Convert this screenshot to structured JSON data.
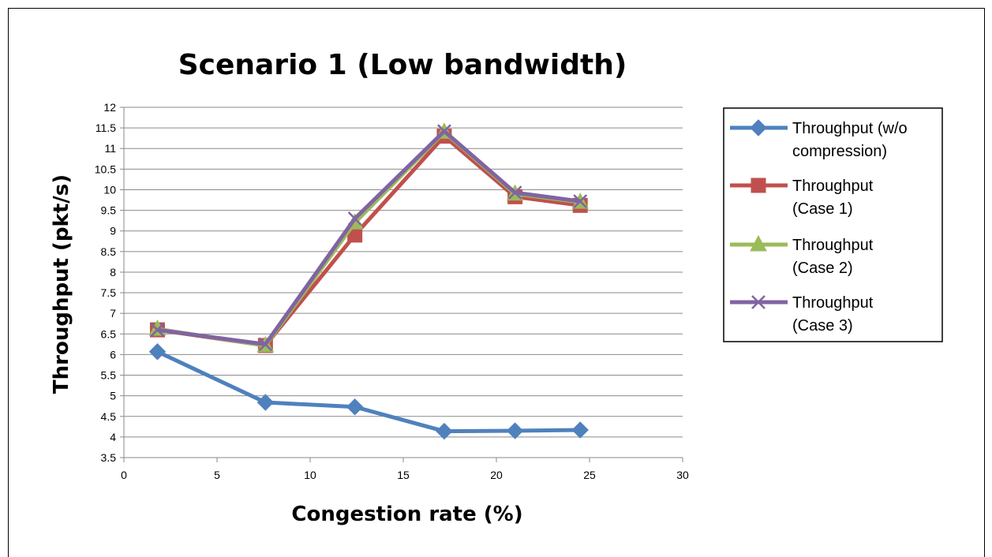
{
  "chart_data": {
    "type": "line",
    "title": "Scenario 1 (Low bandwidth)",
    "xlabel": "Congestion rate (%)",
    "ylabel": "Throughput (pkt/s)",
    "xlim": [
      0,
      30
    ],
    "ylim": [
      3.5,
      12
    ],
    "xticks": [
      0,
      5,
      10,
      15,
      20,
      25,
      30
    ],
    "yticks": [
      3.5,
      4,
      4.5,
      5,
      5.5,
      6,
      6.5,
      7,
      7.5,
      8,
      8.5,
      9,
      9.5,
      10,
      10.5,
      11,
      11.5,
      12
    ],
    "grid": "horizontal",
    "legend_position": "right",
    "series": [
      {
        "name_lines": [
          "Throughput (w/o",
          "compression)"
        ],
        "color": "#4F81BD",
        "marker": "diamond",
        "x": [
          1.8,
          7.6,
          12.4,
          17.2,
          21.0,
          24.5
        ],
        "y": [
          6.07,
          4.84,
          4.73,
          4.14,
          4.15,
          4.17
        ]
      },
      {
        "name_lines": [
          "Throughput",
          "(Case 1)"
        ],
        "color": "#C0504D",
        "marker": "square",
        "x": [
          1.8,
          7.6,
          12.4,
          17.2,
          21.0,
          24.5
        ],
        "y": [
          6.6,
          6.22,
          8.9,
          11.3,
          9.83,
          9.62
        ]
      },
      {
        "name_lines": [
          "Throughput",
          "(Case 2)"
        ],
        "color": "#9BBB59",
        "marker": "triangle",
        "x": [
          1.8,
          7.6,
          12.4,
          17.2,
          21.0,
          24.5
        ],
        "y": [
          6.62,
          6.22,
          9.2,
          11.4,
          9.9,
          9.7
        ]
      },
      {
        "name_lines": [
          "Throughput",
          "(Case 3)"
        ],
        "color": "#8064A2",
        "marker": "x",
        "x": [
          1.8,
          7.6,
          12.4,
          17.2,
          21.0,
          24.5
        ],
        "y": [
          6.6,
          6.25,
          9.3,
          11.42,
          9.93,
          9.72
        ]
      }
    ]
  }
}
